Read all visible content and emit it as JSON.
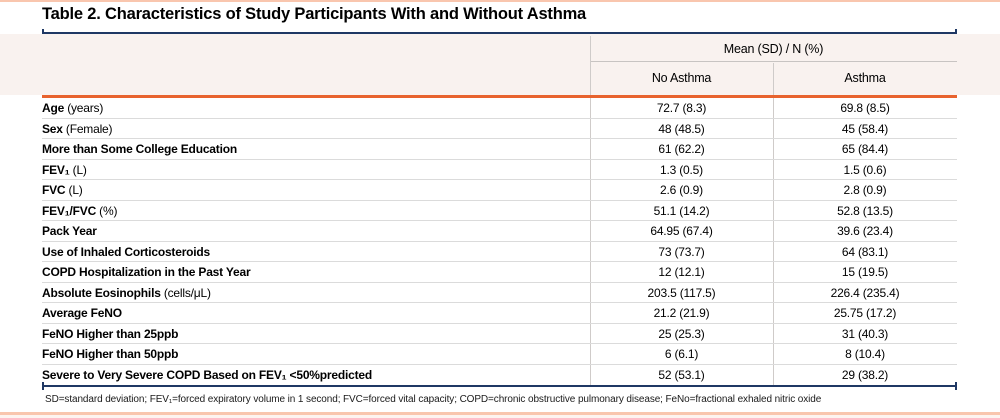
{
  "title": "Table 2. Characteristics of Study Participants With and Without Asthma",
  "header": {
    "group": "Mean (SD) / N (%)",
    "col_no_asthma": "No Asthma",
    "col_asthma": "Asthma"
  },
  "rows": [
    {
      "label": "Age",
      "note": " (years)",
      "no_asthma": "72.7 (8.3)",
      "asthma": "69.8 (8.5)"
    },
    {
      "label": "Sex",
      "note": " (Female)",
      "no_asthma": "48 (48.5)",
      "asthma": "45 (58.4)"
    },
    {
      "label": "More than Some College Education",
      "note": "",
      "no_asthma": "61 (62.2)",
      "asthma": "65 (84.4)"
    },
    {
      "label": "FEV₁",
      "note": " (L)",
      "no_asthma": "1.3 (0.5)",
      "asthma": "1.5 (0.6)"
    },
    {
      "label": "FVC",
      "note": " (L)",
      "no_asthma": "2.6 (0.9)",
      "asthma": "2.8 (0.9)"
    },
    {
      "label": "FEV₁/FVC",
      "note": " (%)",
      "no_asthma": "51.1 (14.2)",
      "asthma": "52.8 (13.5)"
    },
    {
      "label": "Pack Year",
      "note": "",
      "no_asthma": "64.95 (67.4)",
      "asthma": "39.6 (23.4)"
    },
    {
      "label": "Use of Inhaled Corticosteroids",
      "note": "",
      "no_asthma": "73 (73.7)",
      "asthma": "64 (83.1)"
    },
    {
      "label": "COPD Hospitalization in the Past Year",
      "note": "",
      "no_asthma": "12 (12.1)",
      "asthma": "15 (19.5)"
    },
    {
      "label": "Absolute Eosinophils",
      "note": " (cells/μL)",
      "no_asthma": "203.5 (117.5)",
      "asthma": "226.4 (235.4)"
    },
    {
      "label": "Average FeNO",
      "note": "",
      "no_asthma": "21.2 (21.9)",
      "asthma": "25.75 (17.2)"
    },
    {
      "label": "FeNO Higher than 25ppb",
      "note": "",
      "no_asthma": "25 (25.3)",
      "asthma": "31 (40.3)"
    },
    {
      "label": "FeNO Higher than 50ppb",
      "note": "",
      "no_asthma": "6 (6.1)",
      "asthma": "8 (10.4)"
    },
    {
      "label": "Severe to Very Severe COPD Based on FEV₁ <50%predicted",
      "note": "",
      "no_asthma": "52 (53.1)",
      "asthma": "29 (38.2)"
    }
  ],
  "footnote": "SD=standard deviation; FEV₁=forced expiratory volume in 1 second; FVC=forced vital capacity; COPD=chronic obstructive pulmonary disease; FeNo=fractional exhaled nitric oxide",
  "colors": {
    "navy": "#1F3864",
    "orange": "#E8632E",
    "salmon_strip": "#F9C6AE",
    "header_bg": "#F9F2EF",
    "grid": "#DBDBDB"
  }
}
